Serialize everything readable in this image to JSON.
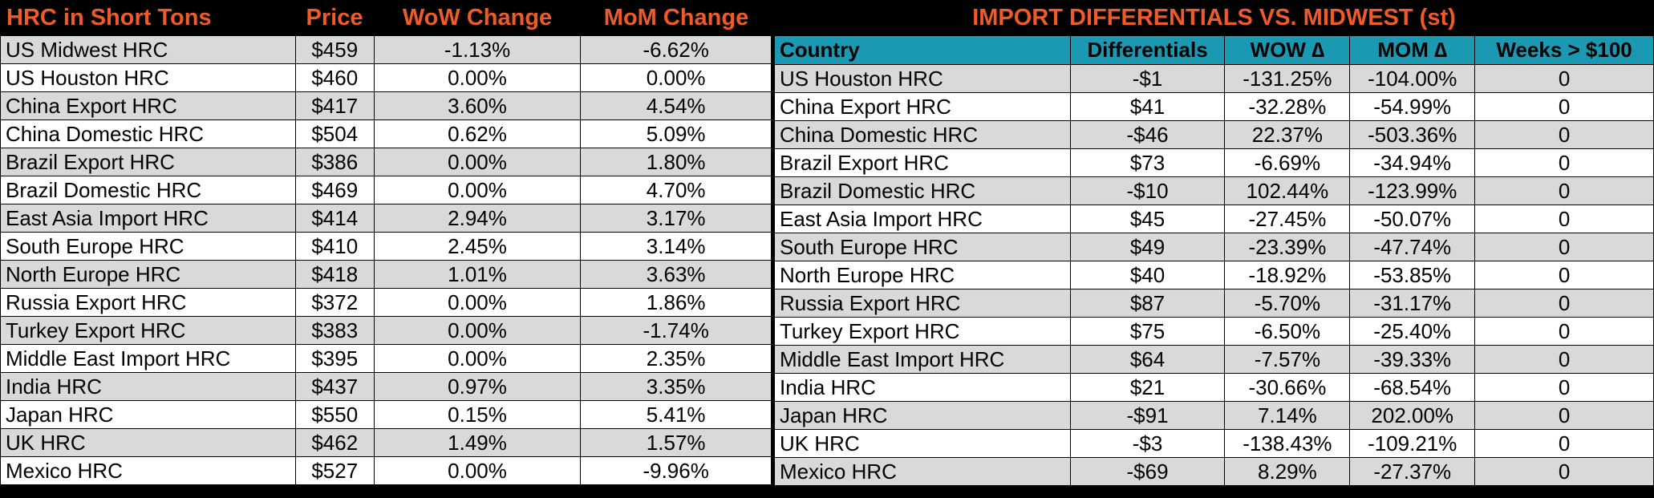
{
  "left": {
    "headers": [
      "HRC in Short Tons",
      "Price",
      "WoW Change",
      "MoM Change"
    ],
    "rows": [
      {
        "name": "US Midwest HRC",
        "price": "$459",
        "wow": "-1.13%",
        "mom": "-6.62%"
      },
      {
        "name": "US Houston HRC",
        "price": "$460",
        "wow": "0.00%",
        "mom": "0.00%"
      },
      {
        "name": "China Export HRC",
        "price": "$417",
        "wow": "3.60%",
        "mom": "4.54%"
      },
      {
        "name": "China Domestic HRC",
        "price": "$504",
        "wow": "0.62%",
        "mom": "5.09%"
      },
      {
        "name": "Brazil Export HRC",
        "price": "$386",
        "wow": "0.00%",
        "mom": "1.80%"
      },
      {
        "name": "Brazil Domestic HRC",
        "price": "$469",
        "wow": "0.00%",
        "mom": "4.70%"
      },
      {
        "name": "East Asia Import HRC",
        "price": "$414",
        "wow": "2.94%",
        "mom": "3.17%"
      },
      {
        "name": "South Europe HRC",
        "price": "$410",
        "wow": "2.45%",
        "mom": "3.14%"
      },
      {
        "name": "North Europe HRC",
        "price": "$418",
        "wow": "1.01%",
        "mom": "3.63%"
      },
      {
        "name": "Russia Export HRC",
        "price": "$372",
        "wow": "0.00%",
        "mom": "1.86%"
      },
      {
        "name": "Turkey Export HRC",
        "price": "$383",
        "wow": "0.00%",
        "mom": "-1.74%"
      },
      {
        "name": "Middle East Import HRC",
        "price": "$395",
        "wow": "0.00%",
        "mom": "2.35%"
      },
      {
        "name": "India HRC",
        "price": "$437",
        "wow": "0.97%",
        "mom": "3.35%"
      },
      {
        "name": "Japan HRC",
        "price": "$550",
        "wow": "0.15%",
        "mom": "5.41%"
      },
      {
        "name": "UK HRC",
        "price": "$462",
        "wow": "1.49%",
        "mom": "1.57%"
      },
      {
        "name": "Mexico HRC",
        "price": "$527",
        "wow": "0.00%",
        "mom": "-9.96%"
      }
    ]
  },
  "right": {
    "title": "IMPORT DIFFERENTIALS VS. MIDWEST (st)",
    "headers": [
      "Country",
      "Differentials",
      "WOW ∆",
      "MOM ∆",
      "Weeks > $100"
    ],
    "rows": [
      {
        "name": "US Houston HRC",
        "diff": "-$1",
        "wow": "-131.25%",
        "mom": "-104.00%",
        "weeks": "0"
      },
      {
        "name": "China Export HRC",
        "diff": "$41",
        "wow": "-32.28%",
        "mom": "-54.99%",
        "weeks": "0"
      },
      {
        "name": "China Domestic HRC",
        "diff": "-$46",
        "wow": "22.37%",
        "mom": "-503.36%",
        "weeks": "0"
      },
      {
        "name": "Brazil Export HRC",
        "diff": "$73",
        "wow": "-6.69%",
        "mom": "-34.94%",
        "weeks": "0"
      },
      {
        "name": "Brazil Domestic HRC",
        "diff": "-$10",
        "wow": "102.44%",
        "mom": "-123.99%",
        "weeks": "0"
      },
      {
        "name": "East Asia Import HRC",
        "diff": "$45",
        "wow": "-27.45%",
        "mom": "-50.07%",
        "weeks": "0"
      },
      {
        "name": "South Europe HRC",
        "diff": "$49",
        "wow": "-23.39%",
        "mom": "-47.74%",
        "weeks": "0"
      },
      {
        "name": "North Europe HRC",
        "diff": "$40",
        "wow": "-18.92%",
        "mom": "-53.85%",
        "weeks": "0"
      },
      {
        "name": "Russia Export HRC",
        "diff": "$87",
        "wow": "-5.70%",
        "mom": "-31.17%",
        "weeks": "0"
      },
      {
        "name": "Turkey Export HRC",
        "diff": "$75",
        "wow": "-6.50%",
        "mom": "-25.40%",
        "weeks": "0"
      },
      {
        "name": "Middle East Import HRC",
        "diff": "$64",
        "wow": "-7.57%",
        "mom": "-39.33%",
        "weeks": "0"
      },
      {
        "name": "India HRC",
        "diff": "$21",
        "wow": "-30.66%",
        "mom": "-68.54%",
        "weeks": "0"
      },
      {
        "name": "Japan HRC",
        "diff": "-$91",
        "wow": "7.14%",
        "mom": "202.00%",
        "weeks": "0"
      },
      {
        "name": "UK HRC",
        "diff": "-$3",
        "wow": "-138.43%",
        "mom": "-109.21%",
        "weeks": "0"
      },
      {
        "name": "Mexico HRC",
        "diff": "-$69",
        "wow": "8.29%",
        "mom": "-27.37%",
        "weeks": "0"
      }
    ]
  },
  "colors": {
    "title": "#F05A28",
    "header_bg": "#1B99B3",
    "row_shade": "#D9D9D9",
    "row_plain": "#FFFFFF"
  }
}
